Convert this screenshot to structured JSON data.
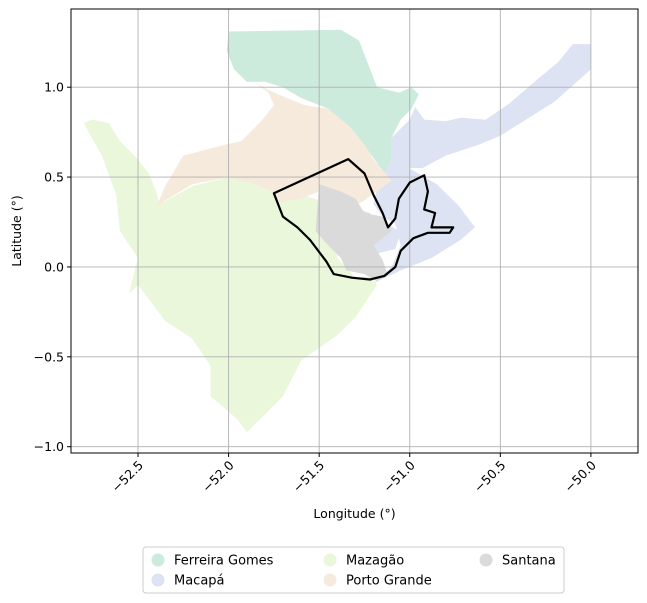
{
  "chart_data": {
    "type": "map",
    "xlabel": "Longitude (°)",
    "ylabel": "Latitude (°)",
    "xlim": [
      -52.87,
      -49.74
    ],
    "ylim": [
      -1.035,
      1.435
    ],
    "xticks": [
      -52.5,
      -52.0,
      -51.5,
      -51.0,
      -50.5,
      -50.0
    ],
    "xtick_labels": [
      "−52.5",
      "−52.0",
      "−51.5",
      "−51.0",
      "−50.5",
      "−50.0"
    ],
    "yticks": [
      1.0,
      0.5,
      0.0,
      -0.5,
      -1.0
    ],
    "ytick_labels": [
      "1.0",
      "0.5",
      "0.0",
      "−0.5",
      "−1.0"
    ],
    "grid": true,
    "legend_position": "bottom-center",
    "regions": [
      {
        "name": "Ferreira Gomes",
        "color": "#cdebdd",
        "polygons": [
          [
            [
              -52.0,
              1.31
            ],
            [
              -51.38,
              1.32
            ],
            [
              -51.28,
              1.26
            ],
            [
              -51.18,
              1.0
            ],
            [
              -51.06,
              0.97
            ],
            [
              -50.99,
              1.0
            ],
            [
              -50.95,
              0.96
            ],
            [
              -50.99,
              0.88
            ],
            [
              -51.05,
              0.82
            ],
            [
              -51.1,
              0.72
            ],
            [
              -51.1,
              0.55
            ],
            [
              -51.15,
              0.52
            ],
            [
              -51.18,
              0.58
            ],
            [
              -51.24,
              0.66
            ],
            [
              -51.33,
              0.76
            ],
            [
              -51.45,
              0.88
            ],
            [
              -51.6,
              0.94
            ],
            [
              -51.7,
              1.0
            ],
            [
              -51.8,
              1.03
            ],
            [
              -51.9,
              1.03
            ],
            [
              -51.97,
              1.1
            ],
            [
              -52.01,
              1.2
            ]
          ]
        ]
      },
      {
        "name": "Macapá",
        "color": "#dde3f2",
        "polygons": [
          [
            [
              -50.1,
              1.24
            ],
            [
              -50.0,
              1.24
            ],
            [
              -50.0,
              1.1
            ],
            [
              -50.2,
              0.92
            ],
            [
              -50.5,
              0.73
            ],
            [
              -50.62,
              0.68
            ],
            [
              -50.8,
              0.62
            ],
            [
              -50.93,
              0.55
            ],
            [
              -51.1,
              0.55
            ],
            [
              -51.1,
              0.72
            ],
            [
              -51.0,
              0.82
            ],
            [
              -50.97,
              0.89
            ],
            [
              -50.92,
              0.82
            ],
            [
              -50.8,
              0.81
            ],
            [
              -50.72,
              0.83
            ],
            [
              -50.58,
              0.82
            ],
            [
              -50.45,
              0.91
            ],
            [
              -50.3,
              1.04
            ],
            [
              -50.18,
              1.14
            ]
          ],
          [
            [
              -51.1,
              0.6
            ],
            [
              -50.95,
              0.52
            ],
            [
              -50.85,
              0.46
            ],
            [
              -50.73,
              0.34
            ],
            [
              -50.64,
              0.22
            ],
            [
              -50.72,
              0.15
            ],
            [
              -50.88,
              0.05
            ],
            [
              -51.05,
              -0.02
            ],
            [
              -51.2,
              -0.09
            ],
            [
              -51.1,
              0.0
            ],
            [
              -51.05,
              0.12
            ],
            [
              -51.08,
              0.24
            ],
            [
              -51.15,
              0.28
            ],
            [
              -51.2,
              0.35
            ],
            [
              -51.18,
              0.44
            ]
          ],
          [
            [
              -51.34,
              0.18
            ],
            [
              -51.28,
              0.32
            ],
            [
              -51.22,
              0.3
            ],
            [
              -51.18,
              0.25
            ],
            [
              -51.12,
              0.24
            ],
            [
              -51.05,
              0.19
            ],
            [
              -51.08,
              0.1
            ],
            [
              -51.2,
              0.07
            ],
            [
              -51.32,
              0.1
            ]
          ]
        ]
      },
      {
        "name": "Mazagão",
        "color": "#eaf7da",
        "polygons": [
          [
            [
              -52.75,
              0.82
            ],
            [
              -52.66,
              0.8
            ],
            [
              -52.6,
              0.7
            ],
            [
              -52.52,
              0.62
            ],
            [
              -52.44,
              0.52
            ],
            [
              -52.4,
              0.42
            ],
            [
              -52.38,
              0.35
            ],
            [
              -52.2,
              0.45
            ],
            [
              -52.0,
              0.5
            ],
            [
              -51.85,
              0.48
            ],
            [
              -51.65,
              0.42
            ],
            [
              -51.5,
              0.37
            ],
            [
              -51.42,
              0.28
            ],
            [
              -51.4,
              0.05
            ],
            [
              -51.3,
              -0.06
            ],
            [
              -51.22,
              -0.05
            ],
            [
              -51.18,
              -0.1
            ],
            [
              -51.3,
              -0.28
            ],
            [
              -51.4,
              -0.38
            ],
            [
              -51.6,
              -0.52
            ],
            [
              -51.7,
              -0.72
            ],
            [
              -51.85,
              -0.87
            ],
            [
              -51.9,
              -0.92
            ],
            [
              -51.95,
              -0.85
            ],
            [
              -52.05,
              -0.76
            ],
            [
              -52.1,
              -0.72
            ],
            [
              -52.1,
              -0.55
            ],
            [
              -52.2,
              -0.4
            ],
            [
              -52.35,
              -0.3
            ],
            [
              -52.5,
              -0.1
            ],
            [
              -52.55,
              -0.15
            ],
            [
              -52.5,
              0.05
            ],
            [
              -52.6,
              0.2
            ],
            [
              -52.62,
              0.4
            ],
            [
              -52.7,
              0.62
            ],
            [
              -52.8,
              0.8
            ]
          ]
        ]
      },
      {
        "name": "Porto Grande",
        "color": "#f5eadc",
        "polygons": [
          [
            [
              -51.85,
              1.02
            ],
            [
              -51.75,
              0.97
            ],
            [
              -51.58,
              0.9
            ],
            [
              -51.45,
              0.88
            ],
            [
              -51.33,
              0.78
            ],
            [
              -51.25,
              0.68
            ],
            [
              -51.2,
              0.6
            ],
            [
              -51.1,
              0.48
            ],
            [
              -51.25,
              0.37
            ],
            [
              -51.32,
              0.33
            ],
            [
              -51.42,
              0.38
            ],
            [
              -51.5,
              0.42
            ],
            [
              -51.6,
              0.38
            ],
            [
              -51.73,
              0.36
            ],
            [
              -51.74,
              0.41
            ],
            [
              -51.85,
              0.46
            ],
            [
              -52.0,
              0.5
            ],
            [
              -52.2,
              0.46
            ],
            [
              -52.35,
              0.37
            ],
            [
              -52.4,
              0.33
            ],
            [
              -52.35,
              0.45
            ],
            [
              -52.25,
              0.62
            ],
            [
              -52.02,
              0.68
            ],
            [
              -51.93,
              0.7
            ],
            [
              -51.82,
              0.81
            ],
            [
              -51.75,
              0.9
            ],
            [
              -51.78,
              0.97
            ]
          ]
        ]
      },
      {
        "name": "Santana",
        "color": "#dadada",
        "polygons": [
          [
            [
              -51.5,
              0.46
            ],
            [
              -51.38,
              0.42
            ],
            [
              -51.3,
              0.38
            ],
            [
              -51.25,
              0.3
            ],
            [
              -51.15,
              0.28
            ],
            [
              -51.1,
              0.2
            ],
            [
              -51.2,
              0.12
            ],
            [
              -51.15,
              0.04
            ],
            [
              -51.12,
              -0.05
            ],
            [
              -51.18,
              -0.08
            ],
            [
              -51.25,
              -0.04
            ],
            [
              -51.35,
              -0.02
            ],
            [
              -51.38,
              0.05
            ],
            [
              -51.45,
              0.12
            ],
            [
              -51.52,
              0.2
            ]
          ]
        ]
      }
    ],
    "outline": [
      [
        -51.75,
        0.41
      ],
      [
        -51.34,
        0.6
      ],
      [
        -51.25,
        0.52
      ],
      [
        -51.2,
        0.4
      ],
      [
        -51.15,
        0.3
      ],
      [
        -51.12,
        0.22
      ],
      [
        -51.08,
        0.27
      ],
      [
        -51.06,
        0.38
      ],
      [
        -51.0,
        0.47
      ],
      [
        -50.92,
        0.51
      ],
      [
        -50.9,
        0.42
      ],
      [
        -50.92,
        0.32
      ],
      [
        -50.86,
        0.3
      ],
      [
        -50.88,
        0.22
      ],
      [
        -50.8,
        0.22
      ],
      [
        -50.76,
        0.22
      ],
      [
        -50.78,
        0.19
      ],
      [
        -50.9,
        0.19
      ],
      [
        -50.98,
        0.16
      ],
      [
        -51.05,
        0.09
      ],
      [
        -51.08,
        0.0
      ],
      [
        -51.14,
        -0.05
      ],
      [
        -51.22,
        -0.07
      ],
      [
        -51.32,
        -0.06
      ],
      [
        -51.42,
        -0.04
      ],
      [
        -51.46,
        0.03
      ],
      [
        -51.55,
        0.15
      ],
      [
        -51.62,
        0.22
      ],
      [
        -51.7,
        0.28
      ]
    ],
    "legend": [
      {
        "label": "Ferreira Gomes",
        "color": "#cdebdd"
      },
      {
        "label": "Macapá",
        "color": "#dde3f2"
      },
      {
        "label": "Mazagão",
        "color": "#eaf7da"
      },
      {
        "label": "Porto Grande",
        "color": "#f5eadc"
      },
      {
        "label": "Santana",
        "color": "#dadada"
      }
    ]
  }
}
